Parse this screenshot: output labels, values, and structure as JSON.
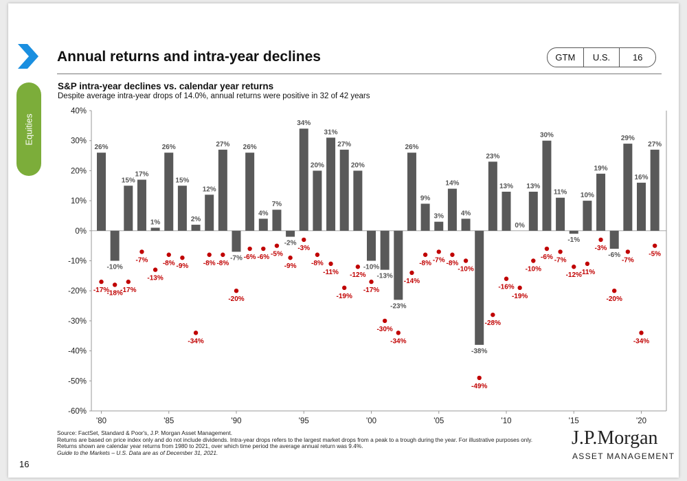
{
  "header": {
    "title": "Annual returns and intra-year declines",
    "badges": [
      "GTM",
      "U.S.",
      "16"
    ]
  },
  "sidebar": {
    "section": "Equities"
  },
  "colors": {
    "bar": "#595959",
    "decline": "#c00000",
    "decline_label": "#c00000",
    "accent": "#1a8fe0",
    "tab": "#7cad3a"
  },
  "chart_data": {
    "type": "bar",
    "title": "S&P intra-year declines vs. calendar year returns",
    "subtitle": "Despite average intra-year drops of 14.0%, annual returns were positive in 32 of 42 years",
    "ylim": [
      -60,
      40
    ],
    "yticks": [
      "40%",
      "30%",
      "20%",
      "10%",
      "0%",
      "-10%",
      "-20%",
      "-30%",
      "-40%",
      "-50%",
      "-60%"
    ],
    "ytick_values": [
      40,
      30,
      20,
      10,
      0,
      -10,
      -20,
      -30,
      -40,
      -50,
      -60
    ],
    "xtick_labels": [
      "'80",
      "'85",
      "'90",
      "'95",
      "'00",
      "'05",
      "'10",
      "'15",
      "'20"
    ],
    "xtick_years": [
      1980,
      1985,
      1990,
      1995,
      2000,
      2005,
      2010,
      2015,
      2020
    ],
    "years": [
      1980,
      1981,
      1982,
      1983,
      1984,
      1985,
      1986,
      1987,
      1988,
      1989,
      1990,
      1991,
      1992,
      1993,
      1994,
      1995,
      1996,
      1997,
      1998,
      1999,
      2000,
      2001,
      2002,
      2003,
      2004,
      2005,
      2006,
      2007,
      2008,
      2009,
      2010,
      2011,
      2012,
      2013,
      2014,
      2015,
      2016,
      2017,
      2018,
      2019,
      2020,
      2021
    ],
    "series": [
      {
        "name": "Calendar year return",
        "values": [
          26,
          -10,
          15,
          17,
          1,
          26,
          15,
          2,
          12,
          27,
          -7,
          26,
          4,
          7,
          -2,
          34,
          20,
          31,
          27,
          20,
          -10,
          -13,
          -23,
          26,
          9,
          3,
          14,
          4,
          -38,
          23,
          13,
          0,
          13,
          30,
          11,
          -1,
          10,
          19,
          -6,
          29,
          16,
          27
        ],
        "labels": [
          "26%",
          "-10%",
          "15%",
          "17%",
          "1%",
          "26%",
          "15%",
          "2%",
          "12%",
          "27%",
          "-7%",
          "26%",
          "4%",
          "7%",
          "-2%",
          "34%",
          "20%",
          "31%",
          "27%",
          "20%",
          "-10%",
          "-13%",
          "-23%",
          "26%",
          "9%",
          "3%",
          "14%",
          "4%",
          "-38%",
          "23%",
          "13%",
          "0%",
          "13%",
          "30%",
          "11%",
          "-1%",
          "10%",
          "19%",
          "-6%",
          "29%",
          "16%",
          "27%"
        ]
      },
      {
        "name": "Intra-year decline",
        "values": [
          -17,
          -18,
          -17,
          -7,
          -13,
          -8,
          -9,
          -34,
          -8,
          -8,
          -20,
          -6,
          -6,
          -5,
          -9,
          -3,
          -8,
          -11,
          -19,
          -12,
          -17,
          -30,
          -34,
          -14,
          -8,
          -7,
          -8,
          -10,
          -49,
          -28,
          -16,
          -19,
          -10,
          -6,
          -7,
          -12,
          -11,
          -3,
          -20,
          -7,
          -34,
          -5
        ],
        "labels": [
          "-17%",
          "-18%",
          "-17%",
          "-7%",
          "-13%",
          "-8%",
          "-9%",
          "-34%",
          "-8%",
          "-8%",
          "-20%",
          "-6%",
          "-6%",
          "-5%",
          "-9%",
          "-3%",
          "-8%",
          "-11%",
          "-19%",
          "-12%",
          "-17%",
          "-30%",
          "-34%",
          "-14%",
          "-8%",
          "-7%",
          "-8%",
          "-10%",
          "-49%",
          "-28%",
          "-16%",
          "-19%",
          "-10%",
          "-6%",
          "-7%",
          "-12%",
          "-11%",
          "-3%",
          "-20%",
          "-7%",
          "-34%",
          "-5%"
        ]
      }
    ]
  },
  "footer": {
    "source": "Source: FactSet, Standard & Poor's, J.P. Morgan Asset Management.",
    "notes": "Returns are based on price index only and do not include dividends. Intra-year drops refers to the largest market drops from a peak to a trough during the year. For illustrative purposes only. Returns shown are calendar year returns from 1980 to 2021, over which time period the average annual return was 9.4%.",
    "guide": "Guide to the Markets – U.S. Data are as of December 31, 2021.",
    "page_number": "16",
    "brand": "J.P.Morgan",
    "brand_sub": "ASSET MANAGEMENT"
  }
}
